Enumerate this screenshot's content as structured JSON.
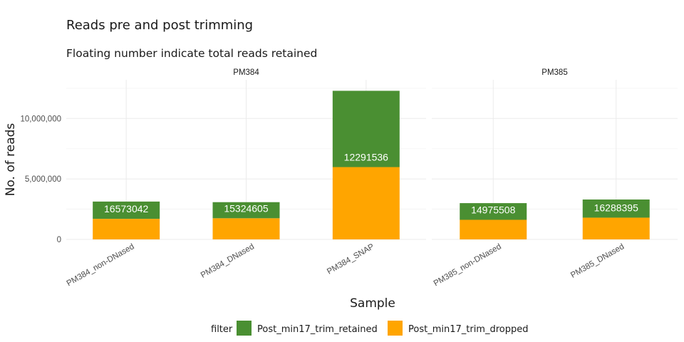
{
  "chart_data": {
    "type": "bar",
    "title": "Reads pre and post trimming",
    "subtitle": "Floating number indicate total reads retained",
    "xlabel": "Sample",
    "ylabel": "No. of reads",
    "ylim": [
      0,
      13200000
    ],
    "y_ticks": [
      0,
      5000000,
      10000000
    ],
    "y_tick_labels": [
      "0",
      "5,000,000",
      "10,000,000"
    ],
    "grid": true,
    "legend": {
      "title": "filter",
      "position": "bottom"
    },
    "colors": {
      "Post_min17_trim_retained": "#4a8f32",
      "Post_min17_trim_dropped": "#ffa500"
    },
    "facets": [
      {
        "label": "PM384",
        "categories": [
          "PM384_non-DNased",
          "PM384_DNased",
          "PM384_SNAP"
        ],
        "series": [
          {
            "name": "Post_min17_trim_dropped",
            "values": [
              1700000,
              1750000,
              5980000
            ]
          },
          {
            "name": "Post_min17_trim_retained",
            "values": [
              1430000,
              1330000,
              6310000
            ]
          }
        ],
        "labels": [
          "16573042",
          "15324605",
          "12291536"
        ]
      },
      {
        "label": "PM385",
        "categories": [
          "PM385_non-DNased",
          "PM385_DNased"
        ],
        "series": [
          {
            "name": "Post_min17_trim_dropped",
            "values": [
              1620000,
              1800000
            ]
          },
          {
            "name": "Post_min17_trim_retained",
            "values": [
              1380000,
              1500000
            ]
          }
        ],
        "labels": [
          "14975508",
          "16288395"
        ]
      }
    ]
  }
}
